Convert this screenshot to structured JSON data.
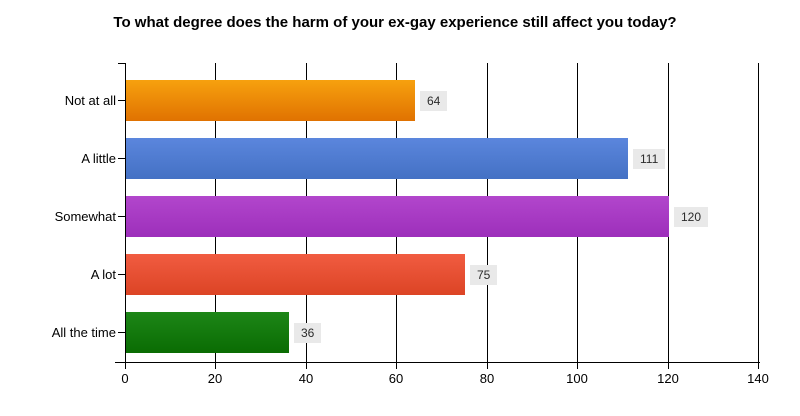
{
  "chart_data": {
    "type": "bar",
    "orientation": "horizontal",
    "title": "To what degree does the harm of your ex-gay experience still affect you today?",
    "categories": [
      "Not at all",
      "A little",
      "Somewhat",
      "A lot",
      "All the time"
    ],
    "values": [
      64,
      111,
      120,
      75,
      36
    ],
    "bar_gradients": [
      [
        "#F7A10E",
        "#E07201"
      ],
      [
        "#5B86DD",
        "#4471C4"
      ],
      [
        "#B246CC",
        "#9D2FBB"
      ],
      [
        "#F15C41",
        "#DC4425"
      ],
      [
        "#1D8617",
        "#0A6C03"
      ]
    ],
    "value_labels": [
      "64",
      "111",
      "120",
      "75",
      "36"
    ],
    "value_label_bg": "#E9E9E9",
    "value_label_color": "#2b2b2b",
    "x_ticks": [
      "0",
      "20",
      "40",
      "60",
      "80",
      "100",
      "120",
      "140"
    ],
    "xlim": [
      0,
      140
    ],
    "grid": true,
    "gridline_color": "#000000",
    "axis_color": "#000000",
    "background": "#FFFFFF",
    "legend": "none"
  }
}
